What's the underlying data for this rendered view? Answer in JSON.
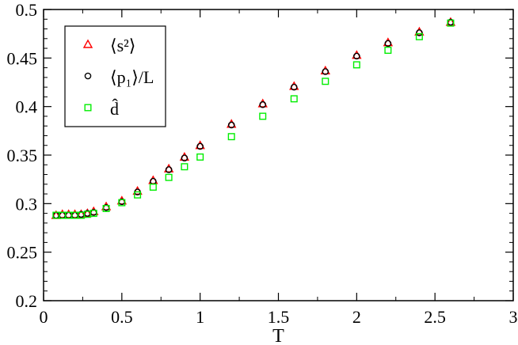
{
  "chart_data": {
    "type": "scatter",
    "title": "",
    "xlabel": "T",
    "ylabel": "",
    "xlim": [
      0,
      3
    ],
    "ylim": [
      0.2,
      0.5
    ],
    "x_ticks": [
      "0",
      "0.5",
      "1",
      "1.5",
      "2",
      "2.5",
      "3"
    ],
    "y_ticks": [
      "0.2",
      "0.25",
      "0.3",
      "0.35",
      "0.4",
      "0.45",
      "0.5"
    ],
    "grid": false,
    "legend_position": "top-left",
    "series": [
      {
        "name": "⟨s²⟩",
        "marker": "triangle",
        "color": "#ff0000",
        "x": [
          0.08,
          0.12,
          0.16,
          0.2,
          0.24,
          0.28,
          0.32,
          0.4,
          0.5,
          0.6,
          0.7,
          0.8,
          0.9,
          1.0,
          1.2,
          1.4,
          1.6,
          1.8,
          2.0,
          2.2,
          2.4,
          2.6
        ],
        "y": [
          0.288,
          0.289,
          0.289,
          0.289,
          0.289,
          0.29,
          0.292,
          0.297,
          0.303,
          0.313,
          0.324,
          0.336,
          0.348,
          0.36,
          0.382,
          0.403,
          0.421,
          0.437,
          0.453,
          0.466,
          0.477,
          0.487
        ]
      },
      {
        "name": "⟨p₁⟩/L",
        "marker": "circle",
        "color": "#000000",
        "x": [
          0.08,
          0.12,
          0.16,
          0.2,
          0.24,
          0.28,
          0.32,
          0.4,
          0.5,
          0.6,
          0.7,
          0.8,
          0.9,
          1.0,
          1.2,
          1.4,
          1.6,
          1.8,
          2.0,
          2.2,
          2.4,
          2.6
        ],
        "y": [
          0.288,
          0.288,
          0.288,
          0.288,
          0.289,
          0.29,
          0.291,
          0.296,
          0.302,
          0.312,
          0.323,
          0.335,
          0.347,
          0.359,
          0.381,
          0.402,
          0.42,
          0.436,
          0.452,
          0.465,
          0.476,
          0.487
        ]
      },
      {
        "name": "d̂",
        "marker": "square",
        "color": "#00ee00",
        "x": [
          0.08,
          0.12,
          0.16,
          0.2,
          0.24,
          0.28,
          0.32,
          0.4,
          0.5,
          0.6,
          0.7,
          0.8,
          0.9,
          1.0,
          1.2,
          1.4,
          1.6,
          1.8,
          2.0,
          2.2,
          2.4,
          2.6
        ],
        "y": [
          0.288,
          0.288,
          0.288,
          0.288,
          0.288,
          0.289,
          0.29,
          0.295,
          0.301,
          0.309,
          0.317,
          0.327,
          0.338,
          0.348,
          0.369,
          0.39,
          0.408,
          0.426,
          0.443,
          0.458,
          0.472,
          0.486
        ]
      }
    ]
  }
}
